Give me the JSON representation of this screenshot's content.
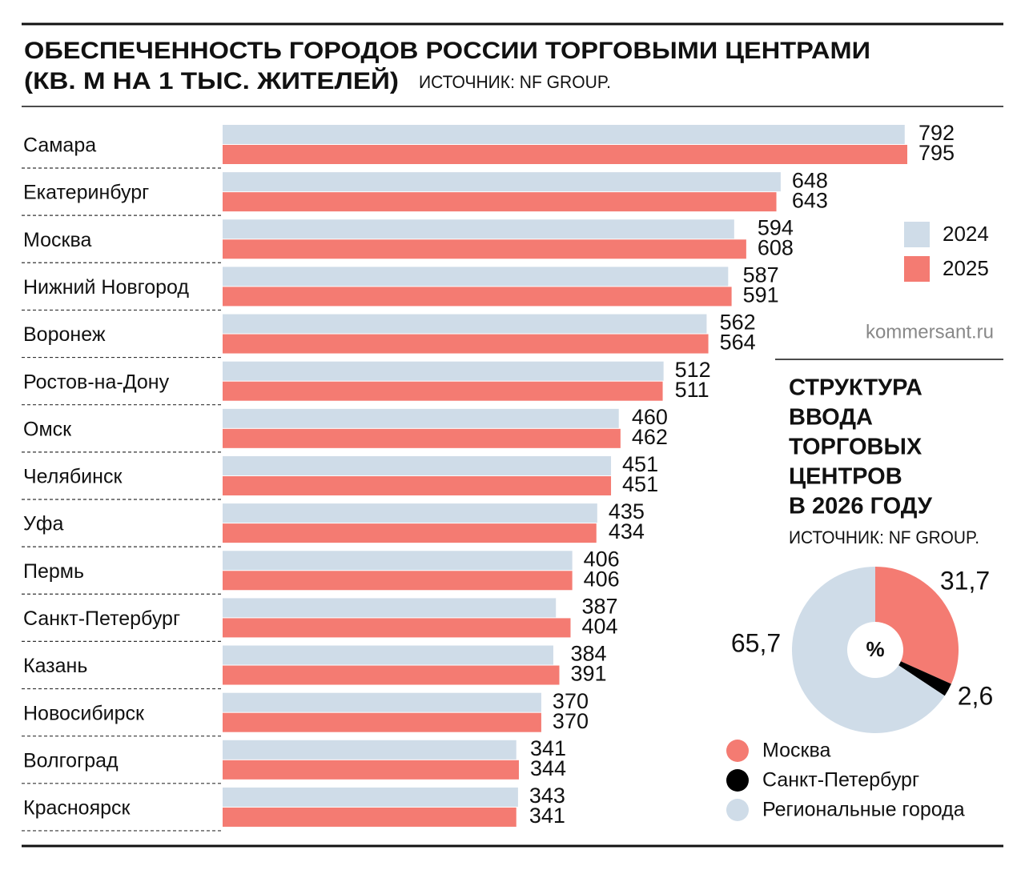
{
  "chart_data": [
    {
      "type": "bar",
      "orientation": "horizontal",
      "title": [
        "ОБЕСПЕЧЕННОСТЬ ГОРОДОВ РОССИИ ТОРГОВЫМИ ЦЕНТРАМИ",
        "(КВ. М НА 1 ТЫС. ЖИТЕЛЕЙ)"
      ],
      "source": "ИСТОЧНИК: NF GROUP.",
      "categories": [
        "Самара",
        "Екатеринбург",
        "Москва",
        "Нижний Новгород",
        "Воронеж",
        "Ростов-на-Дону",
        "Омск",
        "Челябинск",
        "Уфа",
        "Пермь",
        "Санкт-Петербург",
        "Казань",
        "Новосибирск",
        "Волгоград",
        "Красноярск"
      ],
      "series": [
        {
          "name": "2024",
          "color": "#cfdce8",
          "values": [
            792,
            648,
            594,
            587,
            562,
            512,
            460,
            451,
            435,
            406,
            387,
            384,
            370,
            341,
            343
          ]
        },
        {
          "name": "2025",
          "color": "#f47b72",
          "values": [
            795,
            643,
            608,
            591,
            564,
            511,
            462,
            451,
            434,
            406,
            404,
            391,
            370,
            344,
            341
          ]
        }
      ],
      "legend": "right"
    },
    {
      "type": "pie",
      "title": [
        "СТРУКТУРА",
        "ВВОДА",
        "ТОРГОВЫХ",
        "ЦЕНТРОВ",
        "В 2026 ГОДУ"
      ],
      "source": "ИСТОЧНИК: NF GROUP.",
      "center_label": "%",
      "categories": [
        "Москва",
        "Санкт-Петербург",
        "Региональные города"
      ],
      "values": [
        31.7,
        2.6,
        65.7
      ],
      "value_labels": [
        "31,7",
        "2,6",
        "65,7"
      ],
      "colors": [
        "#f47b72",
        "#000000",
        "#cfdce8"
      ]
    }
  ],
  "credit": "kommersant.ru"
}
